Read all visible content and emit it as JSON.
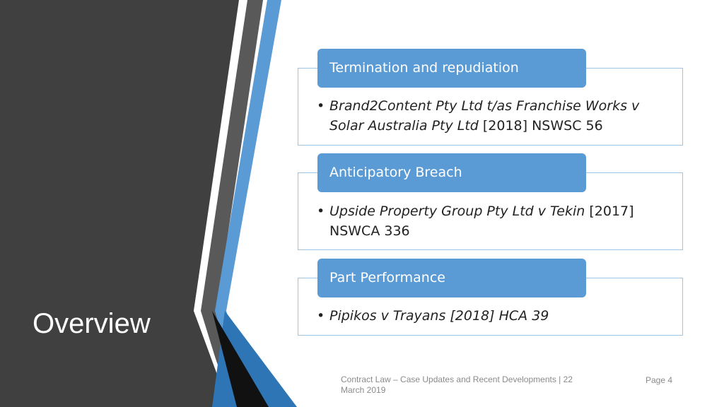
{
  "slide": {
    "title": "Overview",
    "colors": {
      "sidebar": "#404040",
      "accent_blue": "#5b9bd5",
      "accent_dark_blue": "#2e75b6",
      "box_border": "#9dc3e6",
      "footer_text": "#8a8a8a"
    }
  },
  "sections": [
    {
      "heading": "Termination and repudiation",
      "case_italic": "Brand2Content Pty Ltd t/as Franchise Works v Solar Australia Pty Ltd",
      "citation": " [2018] NSWSC 56"
    },
    {
      "heading": "Anticipatory Breach",
      "case_italic": "Upside Property Group Pty Ltd v Tekin",
      "citation": " [2017] NSWCA 336"
    },
    {
      "heading": "Part Performance",
      "case_italic": "Pipikos v Trayans [2018] HCA 39",
      "citation": ""
    }
  ],
  "footer": {
    "text": "Contract Law – Case Updates and Recent Developments | 22 March 2019",
    "page": "Page 4"
  }
}
